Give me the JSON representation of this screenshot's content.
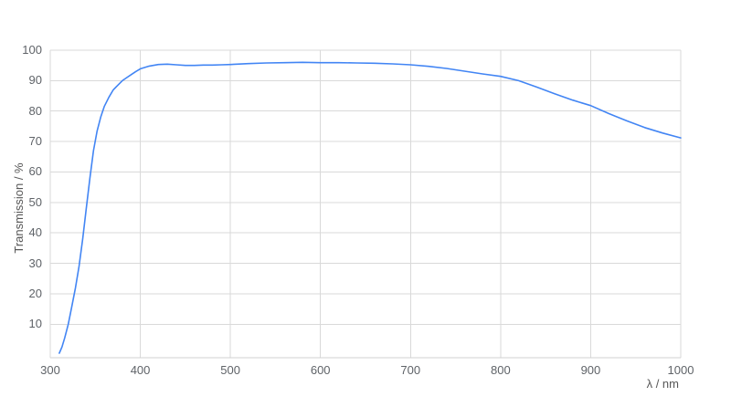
{
  "chart_data": {
    "type": "line",
    "title": "",
    "xlabel": "λ / nm",
    "ylabel": "Transmission / %",
    "xlim": [
      300,
      1000
    ],
    "ylim": [
      -1,
      100
    ],
    "x_ticks": [
      300,
      400,
      500,
      600,
      700,
      800,
      900,
      1000
    ],
    "y_ticks": [
      10,
      20,
      30,
      40,
      50,
      60,
      70,
      80,
      90,
      100
    ],
    "grid": true,
    "legend": "none",
    "line_color": "#4285f4",
    "grid_color": "#d9d9d9",
    "axis_line_color": "#d0d0d0",
    "label_color": "#5f6368",
    "series": [
      {
        "name": "Transmission",
        "x": [
          310,
          313,
          316,
          320,
          324,
          328,
          332,
          336,
          340,
          344,
          348,
          352,
          356,
          360,
          365,
          370,
          375,
          380,
          385,
          390,
          395,
          400,
          410,
          420,
          430,
          440,
          450,
          460,
          470,
          480,
          490,
          500,
          520,
          540,
          560,
          580,
          600,
          620,
          640,
          660,
          680,
          700,
          720,
          740,
          760,
          780,
          800,
          820,
          840,
          860,
          880,
          900,
          920,
          940,
          960,
          980,
          1000
        ],
        "y": [
          0.5,
          2.5,
          5.5,
          10,
          16,
          22,
          29,
          38,
          48,
          58,
          67,
          73.5,
          78,
          81.5,
          84.5,
          87,
          88.5,
          90,
          91,
          92,
          93,
          93.9,
          94.8,
          95.3,
          95.4,
          95.2,
          95.0,
          95.0,
          95.1,
          95.1,
          95.2,
          95.3,
          95.6,
          95.8,
          95.9,
          96.0,
          95.9,
          95.9,
          95.8,
          95.7,
          95.5,
          95.2,
          94.7,
          94.0,
          93.1,
          92.2,
          91.4,
          90.0,
          87.9,
          85.7,
          83.6,
          81.8,
          79.2,
          76.8,
          74.6,
          72.8,
          71.2
        ]
      }
    ]
  }
}
